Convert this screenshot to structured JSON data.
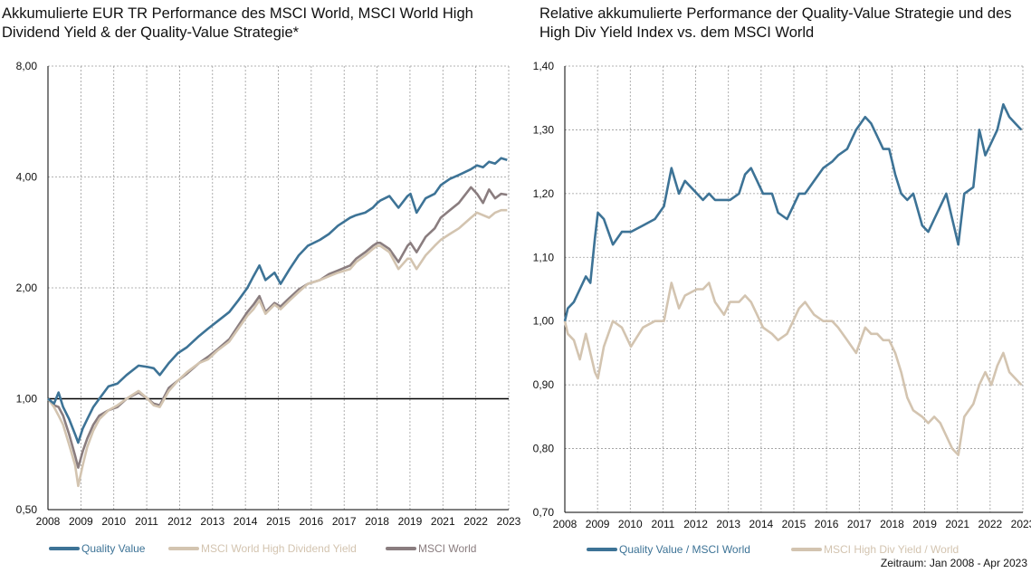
{
  "colors": {
    "quality": "#3d7396",
    "highdiv": "#d3c4b0",
    "world": "#8a7d7f",
    "grid": "#9a9a9a",
    "axis": "#000000"
  },
  "chart_data": [
    {
      "type": "line",
      "title": "Akkumulierte EUR TR Performance des MSCI World, MSCI World High Dividend Yield & der Quality-Value Strategie*",
      "y_scale": "log",
      "ylim": [
        0.5,
        8.0
      ],
      "y_ticks": [
        0.5,
        1.0,
        2.0,
        4.0,
        8.0
      ],
      "y_tick_labels": [
        "0,50",
        "1,00",
        "2,00",
        "4,00",
        "8,00"
      ],
      "x_ticks": [
        "2008",
        "2009",
        "2010",
        "2011",
        "2012",
        "2013",
        "2014",
        "2015",
        "2016",
        "2017",
        "2018",
        "2019",
        "2021",
        "2022",
        "2023"
      ],
      "xlim": [
        2008.0,
        2023.25
      ],
      "grid": true,
      "legend": "bottom",
      "series": [
        {
          "name": "Quality Value",
          "color": "#3d7396",
          "x": [
            2008.0,
            2008.2,
            2008.35,
            2008.5,
            2008.7,
            2008.9,
            2009.0,
            2009.15,
            2009.3,
            2009.5,
            2009.7,
            2010.0,
            2010.3,
            2010.6,
            2011.0,
            2011.3,
            2011.5,
            2011.7,
            2012.0,
            2012.3,
            2012.6,
            2013.0,
            2013.3,
            2013.6,
            2014.0,
            2014.3,
            2014.6,
            2014.8,
            2015.0,
            2015.2,
            2015.5,
            2015.7,
            2016.0,
            2016.3,
            2016.6,
            2017.0,
            2017.3,
            2017.6,
            2018.0,
            2018.2,
            2018.5,
            2018.75,
            2018.9,
            2019.0,
            2019.3,
            2019.6,
            2019.9,
            2020.0,
            2020.2,
            2020.5,
            2020.8,
            2021.0,
            2021.3,
            2021.6,
            2022.0,
            2022.2,
            2022.4,
            2022.6,
            2022.8,
            2023.0,
            2023.2
          ],
          "values": [
            1.0,
            0.97,
            1.04,
            0.95,
            0.88,
            0.8,
            0.76,
            0.83,
            0.88,
            0.95,
            1.0,
            1.08,
            1.1,
            1.16,
            1.23,
            1.22,
            1.21,
            1.16,
            1.25,
            1.33,
            1.38,
            1.48,
            1.55,
            1.62,
            1.72,
            1.85,
            2.0,
            2.15,
            2.3,
            2.1,
            2.2,
            2.05,
            2.25,
            2.45,
            2.6,
            2.7,
            2.8,
            2.95,
            3.1,
            3.15,
            3.2,
            3.3,
            3.4,
            3.45,
            3.55,
            3.3,
            3.55,
            3.6,
            3.2,
            3.5,
            3.6,
            3.8,
            3.95,
            4.05,
            4.2,
            4.3,
            4.25,
            4.4,
            4.35,
            4.5,
            4.45
          ]
        },
        {
          "name": "MSCI World High Dividend Yield",
          "color": "#d3c4b0",
          "x": [
            2008.0,
            2008.2,
            2008.35,
            2008.5,
            2008.7,
            2008.9,
            2009.0,
            2009.15,
            2009.3,
            2009.5,
            2009.7,
            2010.0,
            2010.3,
            2010.6,
            2011.0,
            2011.3,
            2011.5,
            2011.7,
            2012.0,
            2012.3,
            2012.6,
            2013.0,
            2013.3,
            2013.6,
            2014.0,
            2014.3,
            2014.6,
            2014.8,
            2015.0,
            2015.2,
            2015.5,
            2015.7,
            2016.0,
            2016.3,
            2016.6,
            2017.0,
            2017.3,
            2017.6,
            2018.0,
            2018.2,
            2018.5,
            2018.75,
            2018.9,
            2019.0,
            2019.3,
            2019.6,
            2019.9,
            2020.0,
            2020.2,
            2020.5,
            2020.8,
            2021.0,
            2021.3,
            2021.6,
            2022.0,
            2022.2,
            2022.4,
            2022.6,
            2022.8,
            2023.0,
            2023.2
          ],
          "values": [
            1.0,
            0.95,
            0.9,
            0.85,
            0.75,
            0.66,
            0.58,
            0.66,
            0.74,
            0.82,
            0.88,
            0.93,
            0.96,
            1.0,
            1.05,
            1.0,
            0.96,
            0.95,
            1.05,
            1.12,
            1.18,
            1.25,
            1.28,
            1.35,
            1.43,
            1.55,
            1.68,
            1.75,
            1.85,
            1.7,
            1.8,
            1.75,
            1.85,
            1.95,
            2.05,
            2.1,
            2.15,
            2.2,
            2.25,
            2.35,
            2.45,
            2.55,
            2.6,
            2.6,
            2.5,
            2.25,
            2.4,
            2.4,
            2.25,
            2.45,
            2.6,
            2.7,
            2.8,
            2.9,
            3.1,
            3.2,
            3.15,
            3.1,
            3.2,
            3.25,
            3.25
          ]
        },
        {
          "name": "MSCI World",
          "color": "#8a7d7f",
          "x": [
            2008.0,
            2008.2,
            2008.35,
            2008.5,
            2008.7,
            2008.9,
            2009.0,
            2009.15,
            2009.3,
            2009.5,
            2009.7,
            2010.0,
            2010.3,
            2010.6,
            2011.0,
            2011.3,
            2011.5,
            2011.7,
            2012.0,
            2012.3,
            2012.6,
            2013.0,
            2013.3,
            2013.6,
            2014.0,
            2014.3,
            2014.6,
            2014.8,
            2015.0,
            2015.2,
            2015.5,
            2015.7,
            2016.0,
            2016.3,
            2016.6,
            2017.0,
            2017.3,
            2017.6,
            2018.0,
            2018.2,
            2018.5,
            2018.75,
            2018.9,
            2019.0,
            2019.3,
            2019.6,
            2019.9,
            2020.0,
            2020.2,
            2020.5,
            2020.8,
            2021.0,
            2021.3,
            2021.6,
            2022.0,
            2022.2,
            2022.4,
            2022.6,
            2022.8,
            2023.0,
            2023.2
          ],
          "values": [
            1.0,
            0.96,
            0.95,
            0.9,
            0.8,
            0.7,
            0.65,
            0.72,
            0.78,
            0.85,
            0.9,
            0.93,
            0.95,
            1.0,
            1.04,
            1.0,
            0.97,
            0.96,
            1.07,
            1.12,
            1.17,
            1.25,
            1.3,
            1.36,
            1.45,
            1.58,
            1.72,
            1.8,
            1.9,
            1.72,
            1.82,
            1.78,
            1.88,
            1.98,
            2.05,
            2.1,
            2.18,
            2.23,
            2.3,
            2.4,
            2.5,
            2.6,
            2.65,
            2.65,
            2.55,
            2.35,
            2.6,
            2.65,
            2.5,
            2.75,
            2.9,
            3.1,
            3.25,
            3.4,
            3.75,
            3.6,
            3.4,
            3.7,
            3.5,
            3.6,
            3.58
          ]
        }
      ]
    },
    {
      "type": "line",
      "title": "Relative akkumulierte Performance der Quality-Value Strategie und des High Div Yield Index vs. dem MSCI World",
      "ylim": [
        0.7,
        1.4
      ],
      "y_ticks": [
        0.7,
        0.8,
        0.9,
        1.0,
        1.1,
        1.2,
        1.3,
        1.4
      ],
      "y_tick_labels": [
        "0,70",
        "0,80",
        "0,90",
        "1,00",
        "1,10",
        "1,20",
        "1,30",
        "1,40"
      ],
      "x_ticks": [
        "2008",
        "2009",
        "2010",
        "2011",
        "2012",
        "2013",
        "2014",
        "2015",
        "2016",
        "2017",
        "2018",
        "2019",
        "2021",
        "2022",
        "2023"
      ],
      "xlim": [
        2008.0,
        2023.25
      ],
      "grid": true,
      "legend": "bottom",
      "series": [
        {
          "name": "Quality Value / MSCI World",
          "color": "#3d7396",
          "x": [
            2008.0,
            2008.1,
            2008.3,
            2008.5,
            2008.7,
            2008.85,
            2009.0,
            2009.1,
            2009.3,
            2009.6,
            2009.9,
            2010.2,
            2010.6,
            2011.0,
            2011.3,
            2011.55,
            2011.8,
            2012.0,
            2012.4,
            2012.6,
            2012.8,
            2013.0,
            2013.3,
            2013.5,
            2013.8,
            2014.0,
            2014.2,
            2014.4,
            2014.6,
            2014.9,
            2015.1,
            2015.4,
            2015.6,
            2015.8,
            2016.0,
            2016.3,
            2016.6,
            2016.9,
            2017.1,
            2017.4,
            2017.7,
            2018.0,
            2018.2,
            2018.4,
            2018.6,
            2018.8,
            2019.0,
            2019.2,
            2019.4,
            2019.6,
            2019.9,
            2020.1,
            2020.3,
            2020.5,
            2020.7,
            2020.9,
            2021.1,
            2021.3,
            2021.6,
            2021.8,
            2022.0,
            2022.2,
            2022.4,
            2022.6,
            2022.8,
            2023.0,
            2023.2
          ],
          "values": [
            1.0,
            1.02,
            1.03,
            1.05,
            1.07,
            1.06,
            1.13,
            1.17,
            1.16,
            1.12,
            1.14,
            1.14,
            1.15,
            1.16,
            1.18,
            1.24,
            1.2,
            1.22,
            1.2,
            1.19,
            1.2,
            1.19,
            1.19,
            1.19,
            1.2,
            1.23,
            1.24,
            1.22,
            1.2,
            1.2,
            1.17,
            1.16,
            1.18,
            1.2,
            1.2,
            1.22,
            1.24,
            1.25,
            1.26,
            1.27,
            1.3,
            1.32,
            1.31,
            1.29,
            1.27,
            1.27,
            1.23,
            1.2,
            1.19,
            1.2,
            1.15,
            1.14,
            1.16,
            1.18,
            1.2,
            1.16,
            1.12,
            1.2,
            1.21,
            1.3,
            1.26,
            1.28,
            1.3,
            1.34,
            1.32,
            1.31,
            1.3
          ]
        },
        {
          "name": "MSCI High Div Yield / World",
          "color": "#d3c4b0",
          "x": [
            2008.0,
            2008.1,
            2008.3,
            2008.5,
            2008.7,
            2008.85,
            2009.0,
            2009.1,
            2009.3,
            2009.6,
            2009.9,
            2010.2,
            2010.6,
            2011.0,
            2011.3,
            2011.55,
            2011.8,
            2012.0,
            2012.4,
            2012.6,
            2012.8,
            2013.0,
            2013.3,
            2013.5,
            2013.8,
            2014.0,
            2014.2,
            2014.4,
            2014.6,
            2014.9,
            2015.1,
            2015.4,
            2015.6,
            2015.8,
            2016.0,
            2016.3,
            2016.6,
            2016.9,
            2017.1,
            2017.4,
            2017.7,
            2018.0,
            2018.2,
            2018.4,
            2018.6,
            2018.8,
            2019.0,
            2019.2,
            2019.4,
            2019.6,
            2019.9,
            2020.1,
            2020.3,
            2020.5,
            2020.7,
            2020.9,
            2021.1,
            2021.3,
            2021.6,
            2021.8,
            2022.0,
            2022.2,
            2022.4,
            2022.6,
            2022.8,
            2023.0,
            2023.2
          ],
          "values": [
            1.0,
            0.98,
            0.97,
            0.94,
            0.98,
            0.95,
            0.92,
            0.91,
            0.96,
            1.0,
            0.99,
            0.96,
            0.99,
            1.0,
            1.0,
            1.06,
            1.02,
            1.04,
            1.05,
            1.05,
            1.06,
            1.03,
            1.01,
            1.03,
            1.03,
            1.04,
            1.03,
            1.01,
            0.99,
            0.98,
            0.97,
            0.98,
            1.0,
            1.02,
            1.03,
            1.01,
            1.0,
            1.0,
            0.99,
            0.97,
            0.95,
            0.99,
            0.98,
            0.98,
            0.97,
            0.97,
            0.95,
            0.92,
            0.88,
            0.86,
            0.85,
            0.84,
            0.85,
            0.84,
            0.82,
            0.8,
            0.79,
            0.85,
            0.87,
            0.9,
            0.92,
            0.9,
            0.93,
            0.95,
            0.92,
            0.91,
            0.9
          ]
        }
      ]
    }
  ],
  "footer": {
    "zeitraum": "Zeitraum: Jan 2008 - Apr 2023"
  }
}
